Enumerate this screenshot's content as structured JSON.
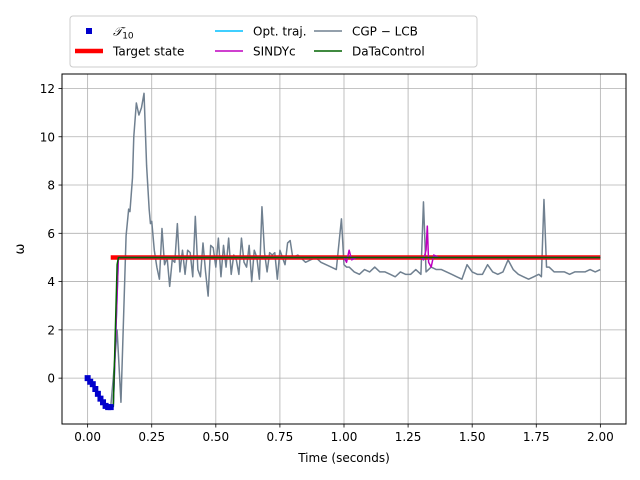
{
  "chart_data": {
    "type": "line",
    "xlabel": "Time (seconds)",
    "ylabel": "ω",
    "xlim": [
      -0.1,
      2.1
    ],
    "ylim": [
      -1.9,
      12.6
    ],
    "grid": true,
    "legend_placement": "top",
    "xticks": [
      {
        "v": 0.0,
        "label": "0.00"
      },
      {
        "v": 0.25,
        "label": "0.25"
      },
      {
        "v": 0.5,
        "label": "0.50"
      },
      {
        "v": 0.75,
        "label": "0.75"
      },
      {
        "v": 1.0,
        "label": "1.00"
      },
      {
        "v": 1.25,
        "label": "1.25"
      },
      {
        "v": 1.5,
        "label": "1.50"
      },
      {
        "v": 1.75,
        "label": "1.75"
      },
      {
        "v": 2.0,
        "label": "2.00"
      }
    ],
    "yticks": [
      {
        "v": 0,
        "label": "0"
      },
      {
        "v": 2,
        "label": "2"
      },
      {
        "v": 4,
        "label": "4"
      },
      {
        "v": 6,
        "label": "6"
      },
      {
        "v": 8,
        "label": "8"
      },
      {
        "v": 10,
        "label": "10"
      },
      {
        "v": 12,
        "label": "12"
      }
    ],
    "legend": [
      {
        "key": "t10",
        "label": "𝒯",
        "sub": "10",
        "kind": "marker",
        "color": "#0000cc"
      },
      {
        "key": "target",
        "label": "Target state",
        "kind": "thick",
        "color": "#ff0000"
      },
      {
        "key": "opt",
        "label": "Opt. traj.",
        "kind": "line",
        "color": "#00bfff"
      },
      {
        "key": "sindy",
        "label": "SINDYc",
        "kind": "line",
        "color": "#bf00bf"
      },
      {
        "key": "cgp",
        "label": "CGP − LCB",
        "kind": "line",
        "color": "#708090"
      },
      {
        "key": "dtc",
        "label": "DaTaControl",
        "kind": "line",
        "color": "#006400"
      }
    ],
    "series": [
      {
        "key": "t10",
        "name": "𝒯10",
        "color": "#0000cc",
        "style": "marker",
        "x": [
          0.0,
          0.01,
          0.02,
          0.03,
          0.04,
          0.05,
          0.06,
          0.07,
          0.08,
          0.09
        ],
        "y": [
          0.0,
          -0.15,
          -0.25,
          -0.45,
          -0.65,
          -0.85,
          -1.0,
          -1.15,
          -1.2,
          -1.2
        ]
      },
      {
        "key": "target",
        "name": "Target state",
        "color": "#ff0000",
        "style": "thick",
        "x": [
          0.09,
          2.0
        ],
        "y": [
          5.0,
          5.0
        ]
      },
      {
        "key": "opt",
        "name": "Opt. traj.",
        "color": "#00bfff",
        "style": "line",
        "x": [
          0.1,
          0.12,
          2.0
        ],
        "y": [
          -1.2,
          5.0,
          5.0
        ]
      },
      {
        "key": "cgp",
        "name": "CGP − LCB",
        "color": "#708090",
        "style": "line",
        "x": [
          0.09,
          0.1,
          0.115,
          0.13,
          0.15,
          0.16,
          0.165,
          0.175,
          0.18,
          0.19,
          0.2,
          0.21,
          0.22,
          0.23,
          0.24,
          0.245,
          0.25,
          0.26,
          0.27,
          0.28,
          0.29,
          0.3,
          0.31,
          0.32,
          0.33,
          0.34,
          0.35,
          0.36,
          0.37,
          0.38,
          0.39,
          0.4,
          0.41,
          0.42,
          0.43,
          0.44,
          0.45,
          0.46,
          0.47,
          0.48,
          0.49,
          0.5,
          0.51,
          0.52,
          0.53,
          0.54,
          0.55,
          0.56,
          0.57,
          0.58,
          0.59,
          0.6,
          0.61,
          0.62,
          0.63,
          0.64,
          0.65,
          0.66,
          0.67,
          0.68,
          0.69,
          0.7,
          0.71,
          0.72,
          0.73,
          0.74,
          0.75,
          0.76,
          0.77,
          0.78,
          0.79,
          0.8,
          0.82,
          0.84,
          0.85,
          0.87,
          0.89,
          0.91,
          0.93,
          0.95,
          0.97,
          0.99,
          1.0,
          1.01,
          1.02,
          1.04,
          1.06,
          1.08,
          1.1,
          1.12,
          1.14,
          1.16,
          1.18,
          1.2,
          1.22,
          1.24,
          1.26,
          1.28,
          1.3,
          1.31,
          1.32,
          1.34,
          1.36,
          1.38,
          1.4,
          1.42,
          1.44,
          1.46,
          1.48,
          1.5,
          1.52,
          1.54,
          1.56,
          1.58,
          1.6,
          1.62,
          1.64,
          1.66,
          1.68,
          1.7,
          1.72,
          1.74,
          1.76,
          1.77,
          1.78,
          1.79,
          1.8,
          1.82,
          1.84,
          1.86,
          1.88,
          1.9,
          1.92,
          1.94,
          1.96,
          1.98,
          2.0
        ],
        "y": [
          -1.2,
          0.0,
          2.0,
          -1.0,
          5.9,
          7.0,
          6.9,
          8.3,
          10.0,
          11.4,
          10.9,
          11.2,
          11.8,
          8.8,
          7.0,
          6.4,
          6.5,
          5.3,
          4.6,
          4.1,
          6.2,
          4.7,
          5.0,
          3.8,
          4.9,
          4.8,
          6.4,
          4.4,
          5.3,
          4.3,
          5.3,
          5.2,
          4.2,
          6.7,
          4.5,
          4.2,
          5.6,
          4.4,
          3.4,
          5.5,
          5.4,
          4.6,
          5.8,
          4.2,
          5.5,
          4.6,
          5.8,
          4.3,
          5.1,
          4.9,
          4.3,
          5.8,
          4.8,
          4.6,
          5.5,
          4.0,
          5.3,
          5.0,
          4.1,
          7.1,
          5.2,
          4.4,
          5.2,
          5.1,
          5.2,
          4.1,
          5.3,
          5.0,
          4.7,
          5.6,
          5.7,
          5.0,
          5.1,
          4.9,
          4.8,
          4.9,
          5.0,
          4.8,
          4.7,
          4.6,
          4.5,
          6.6,
          4.7,
          4.6,
          4.6,
          4.4,
          4.3,
          4.5,
          4.4,
          4.6,
          4.4,
          4.4,
          4.3,
          4.2,
          4.4,
          4.3,
          4.3,
          4.5,
          4.3,
          7.3,
          4.4,
          4.6,
          4.5,
          4.5,
          4.4,
          4.3,
          4.2,
          4.1,
          4.7,
          4.4,
          4.3,
          4.3,
          4.7,
          4.4,
          4.3,
          4.4,
          4.9,
          4.5,
          4.3,
          4.2,
          4.1,
          4.2,
          4.3,
          4.2,
          7.4,
          4.6,
          4.6,
          4.4,
          4.4,
          4.4,
          4.3,
          4.4,
          4.4,
          4.4,
          4.5,
          4.4,
          4.5
        ]
      },
      {
        "key": "sindy",
        "name": "SINDYc",
        "color": "#bf00bf",
        "style": "line",
        "x": [
          0.1,
          0.12,
          1.0,
          1.01,
          1.02,
          1.03,
          1.05,
          1.3,
          1.31,
          1.32,
          1.325,
          1.33,
          1.34,
          1.35,
          1.37,
          2.0
        ],
        "y": [
          -1.2,
          5.0,
          5.0,
          4.8,
          5.3,
          4.9,
          5.0,
          5.0,
          4.9,
          5.3,
          6.3,
          4.8,
          4.6,
          5.1,
          5.0,
          5.0
        ]
      },
      {
        "key": "dtc",
        "name": "DaTaControl",
        "color": "#006400",
        "style": "line",
        "x": [
          0.1,
          0.115,
          0.12,
          0.13,
          2.0
        ],
        "y": [
          -1.2,
          4.7,
          5.0,
          5.0,
          5.0
        ]
      }
    ]
  }
}
